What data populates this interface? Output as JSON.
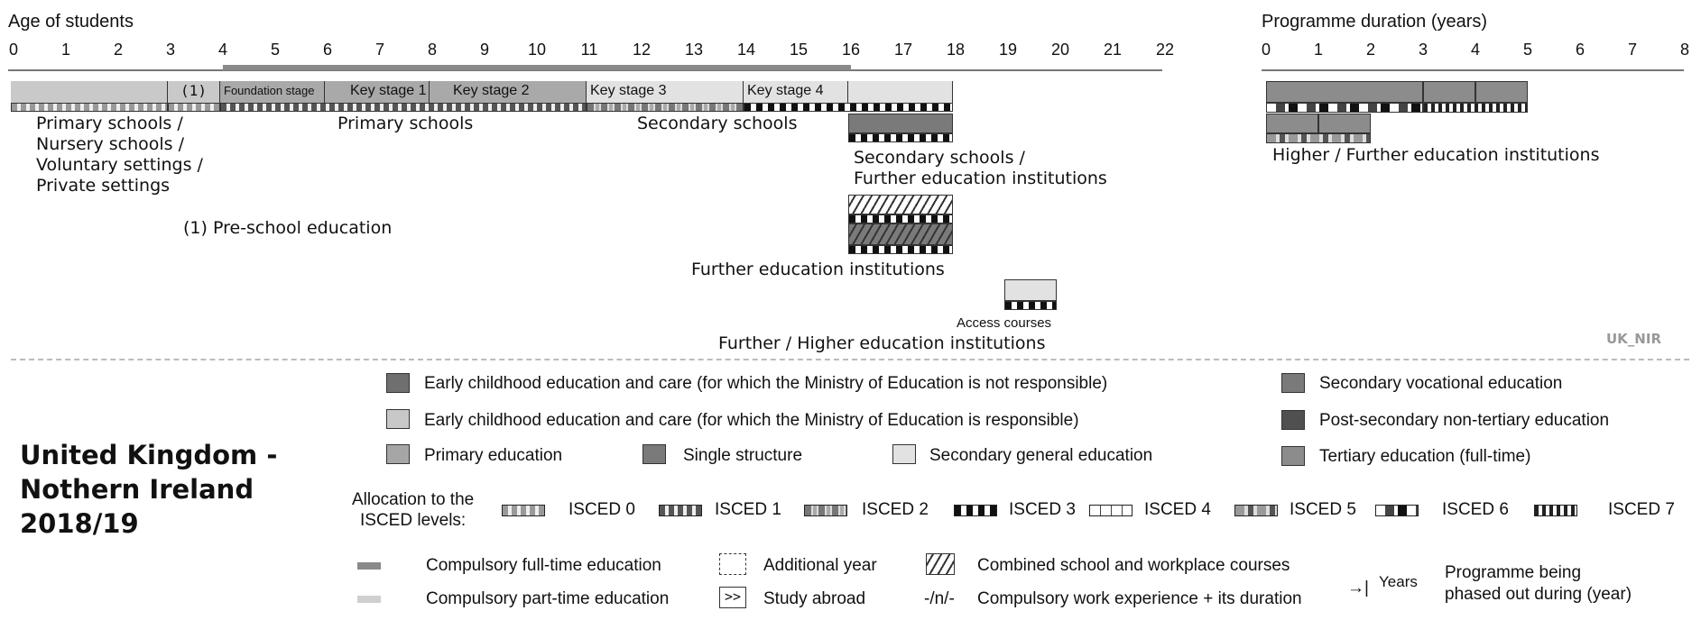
{
  "age_axis": {
    "title": "Age of students",
    "ticks": [
      "0",
      "1",
      "2",
      "3",
      "4",
      "5",
      "6",
      "7",
      "8",
      "9",
      "10",
      "11",
      "12",
      "13",
      "14",
      "15",
      "16",
      "17",
      "18",
      "19",
      "20",
      "21",
      "22"
    ]
  },
  "duration_axis": {
    "title": "Programme duration (years)",
    "ticks": [
      "0",
      "1",
      "2",
      "3",
      "4",
      "5",
      "6",
      "7",
      "8"
    ]
  },
  "compulsory_education": {
    "from_age": 4,
    "to_age": 16
  },
  "stages": {
    "pre_school_marker": "(1)",
    "foundation": "Foundation stage",
    "ks1": "Key stage 1",
    "ks2": "Key stage 2",
    "ks3": "Key stage 3",
    "ks4": "Key stage 4"
  },
  "labels": {
    "early_settings": [
      "Primary schools /",
      "Nursery schools /",
      "Voluntary settings /",
      "Private settings"
    ],
    "primary_schools": "Primary schools",
    "secondary_schools": "Secondary schools",
    "secondary_further": [
      "Secondary schools /",
      "Further education institutions"
    ],
    "pre_school_note": "(1) Pre-school education",
    "further_education": "Further education institutions",
    "access_courses": "Access courses",
    "further_higher": "Further / Higher education institutions",
    "higher_further": "Higher / Further education institutions",
    "country_code": "UK_NIR"
  },
  "title": {
    "line1": "United Kingdom -",
    "line2": "Nothern Ireland",
    "line3": "2018/19"
  },
  "legend": {
    "ecec_not_responsible": "Early childhood education and care (for which the Ministry of Education is not responsible)",
    "ecec_responsible": "Early childhood education and care (for which the Ministry of Education is responsible)",
    "primary": "Primary education",
    "single_structure": "Single structure",
    "secondary_general": "Secondary general education",
    "secondary_vocational": "Secondary vocational education",
    "post_secondary": "Post-secondary non-tertiary education",
    "tertiary": "Tertiary education (full-time)",
    "allocation_label": [
      "Allocation to the",
      "ISCED levels:"
    ],
    "isced": [
      "ISCED 0",
      "ISCED 1",
      "ISCED 2",
      "ISCED 3",
      "ISCED 4",
      "ISCED 5",
      "ISCED 6",
      "ISCED 7"
    ],
    "compulsory_full": "Compulsory full-time education",
    "compulsory_part": "Compulsory part-time education",
    "additional_year": "Additional year",
    "study_abroad": "Study abroad",
    "study_abroad_symbol": ">>",
    "combined": "Combined school and workplace courses",
    "work_exp_symbol": "-/n/-",
    "work_exp": "Compulsory work experience + its duration",
    "years": "Years",
    "phased_out": [
      "Programme being",
      "phased out during (year)"
    ]
  },
  "colors": {
    "ecec_not_responsible": "#6f6f6f",
    "ecec_responsible": "#c8c8c8",
    "primary": "#a6a6a6",
    "single_structure": "#7a7a7a",
    "secondary_general": "#e2e2e2",
    "secondary_vocational": "#7a7a7a",
    "post_secondary": "#505050",
    "tertiary": "#8c8c8c"
  }
}
